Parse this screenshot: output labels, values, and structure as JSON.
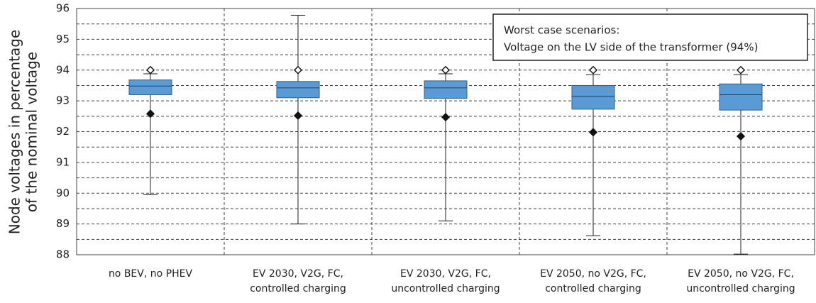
{
  "chart_data": {
    "type": "box",
    "ylabel": [
      "Node voltages in percentage",
      "of the nominal voltage"
    ],
    "annotation": [
      "Worst case scenarios:",
      "Voltage on the LV side of the transformer (94%)"
    ],
    "categories": [
      [
        "no BEV, no PHEV"
      ],
      [
        "EV 2030, V2G, FC,",
        "controlled charging"
      ],
      [
        "EV 2030, V2G, FC,",
        "uncontrolled charging"
      ],
      [
        "EV 2050, no V2G, FC,",
        "controlled charging"
      ],
      [
        "EV 2050, no V2G, FC,",
        "uncontrolled charging"
      ]
    ],
    "low": [
      89.95,
      89.0,
      89.1,
      88.62,
      88.02
    ],
    "q1": [
      93.2,
      93.1,
      93.08,
      92.73,
      92.7
    ],
    "median": [
      93.48,
      93.42,
      93.42,
      93.15,
      93.2
    ],
    "q3": [
      93.68,
      93.63,
      93.65,
      93.5,
      93.55
    ],
    "high": [
      93.88,
      95.78,
      93.88,
      93.85,
      93.85
    ],
    "upper_marker": [
      94.0,
      94.0,
      94.0,
      94.0,
      94.0
    ],
    "lower_marker": [
      92.58,
      92.52,
      92.47,
      91.98,
      91.85
    ],
    "color": "#5b9bd5",
    "ylim": [
      88,
      96
    ],
    "yticks": [
      88,
      89,
      90,
      91,
      92,
      93,
      94,
      95,
      96
    ],
    "yminor": [
      88.5,
      89.5,
      90.5,
      91.5,
      92.5,
      93.5,
      94.5,
      95.5
    ],
    "grid": true
  }
}
